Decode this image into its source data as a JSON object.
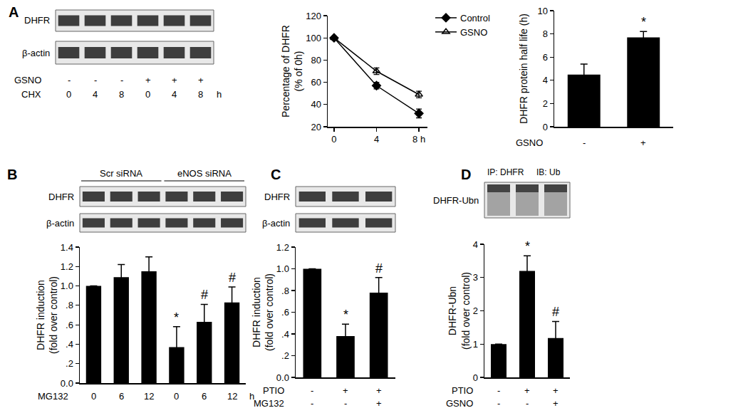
{
  "blots": [
    {
      "panel": "A",
      "type": "bands",
      "rows": [
        "DHFR",
        "β-actin"
      ],
      "conditions": [
        {
          "name": "GSNO",
          "labels": [
            "-",
            "-",
            "-",
            "+",
            "+",
            "+"
          ]
        },
        {
          "name": "CHX",
          "labels": [
            "0",
            "4",
            "8",
            "0",
            "4",
            "8"
          ],
          "unit": "h"
        }
      ]
    },
    {
      "panel": "B",
      "type": "bands",
      "rows": [
        "DHFR",
        "β-actin"
      ],
      "groups": [
        {
          "label": "Scr siRNA",
          "lanes": 3
        },
        {
          "label": "eNOS siRNA",
          "lanes": 3
        }
      ]
    },
    {
      "panel": "C",
      "type": "bands",
      "rows": [
        "DHFR",
        "β-actin"
      ]
    },
    {
      "panel": "D",
      "type": "smear",
      "rows": [
        "DHFR-Ubn"
      ],
      "headers": [
        "IP: DHFR",
        "IB: Ub"
      ]
    }
  ],
  "chart_data": [
    {
      "type": "line",
      "x": [
        0,
        4,
        8
      ],
      "xlim": [
        -0.6,
        8.8
      ],
      "xticks": [
        0,
        4,
        {
          "value": 8,
          "label": "8 h"
        }
      ],
      "ylim": [
        20,
        120
      ],
      "yticks": [
        20,
        40,
        60,
        80,
        100,
        120
      ],
      "ylabel": [
        "Percentage of DHFR",
        "(% of 0h)"
      ],
      "legend": "upper right",
      "series": [
        {
          "name": "Control",
          "color": "#000000",
          "marker": "diamond",
          "values": [
            100,
            57,
            32
          ],
          "errors": [
            0,
            3,
            4
          ]
        },
        {
          "name": "GSNO",
          "color": "#000000",
          "marker": "triangle-up-open",
          "values": [
            100,
            70,
            49
          ],
          "errors": [
            0,
            3,
            3
          ]
        }
      ]
    },
    {
      "type": "bar",
      "color": "#000000",
      "values": [
        4.5,
        7.7
      ],
      "errors": [
        0.9,
        0.5
      ],
      "marks": [
        null,
        "*"
      ],
      "ylim": [
        0,
        10
      ],
      "yticks": [
        0,
        2,
        4,
        6,
        8,
        10
      ],
      "ylabel": [
        "DHFR protein half life (h)"
      ],
      "conditions": [
        {
          "name": "GSNO",
          "labels": [
            "-",
            "+"
          ]
        }
      ]
    },
    {
      "type": "bar",
      "color": "#000000",
      "values": [
        1.0,
        1.09,
        1.15,
        0.37,
        0.63,
        0.83
      ],
      "errors": [
        0,
        0.13,
        0.15,
        0.21,
        0.18,
        0.16
      ],
      "marks": [
        null,
        null,
        null,
        "*",
        "#",
        "#"
      ],
      "ylim": [
        0,
        1.4
      ],
      "yticks": [
        {
          "value": 0,
          "label": "0.0"
        },
        {
          "value": 0.2,
          "label": ".2"
        },
        {
          "value": 0.4,
          "label": ".4"
        },
        {
          "value": 0.6,
          "label": ".6"
        },
        {
          "value": 0.8,
          "label": ".8"
        },
        {
          "value": 1.0,
          "label": "1.0"
        },
        1.2,
        1.4
      ],
      "ylabel": [
        "DHFR induction",
        "(fold over control)"
      ],
      "conditions": [
        {
          "name": "MG132",
          "labels": [
            "0",
            "6",
            "12",
            "0",
            "6",
            "12"
          ],
          "unit": "h"
        }
      ]
    },
    {
      "type": "bar",
      "color": "#000000",
      "values": [
        1.0,
        0.38,
        0.78
      ],
      "errors": [
        0,
        0.11,
        0.14
      ],
      "marks": [
        null,
        "*",
        "#"
      ],
      "ylim": [
        0,
        1.2
      ],
      "yticks": [
        {
          "value": 0,
          "label": "0.0"
        },
        {
          "value": 0.2,
          "label": ".2"
        },
        {
          "value": 0.4,
          "label": ".4"
        },
        {
          "value": 0.6,
          "label": ".6"
        },
        {
          "value": 0.8,
          "label": ".8"
        },
        {
          "value": 1.0,
          "label": "1.0"
        },
        1.2
      ],
      "ylabel": [
        "DHFR induction",
        "(fold over control)"
      ],
      "conditions": [
        {
          "name": "PTIO",
          "labels": [
            "-",
            "+",
            "+"
          ]
        },
        {
          "name": "MG132",
          "labels": [
            "-",
            "-",
            "+"
          ]
        }
      ]
    },
    {
      "type": "bar",
      "color": "#000000",
      "values": [
        1.0,
        3.2,
        1.18
      ],
      "errors": [
        0,
        0.45,
        0.5
      ],
      "marks": [
        null,
        "*",
        "#"
      ],
      "ylim": [
        0,
        4
      ],
      "yticks": [
        0,
        1,
        2,
        3,
        4
      ],
      "ylabel": [
        "DHFR-Ubn",
        "(fold over control)"
      ],
      "conditions": [
        {
          "name": "PTIO",
          "labels": [
            "-",
            "+",
            "+"
          ]
        },
        {
          "name": "GSNO",
          "labels": [
            "-",
            "-",
            "+"
          ]
        }
      ]
    }
  ]
}
